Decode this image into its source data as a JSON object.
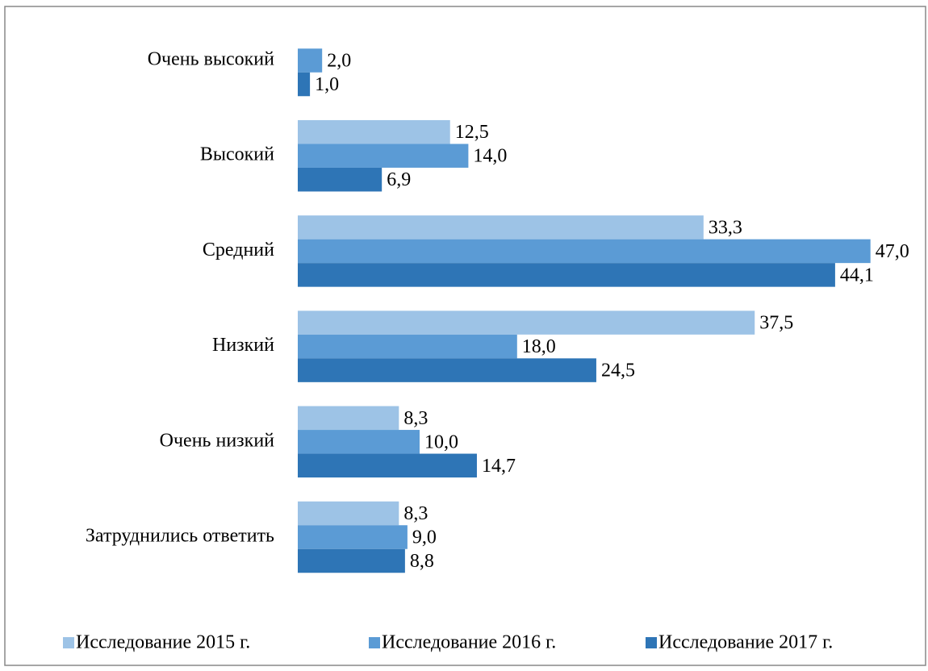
{
  "chart_data": {
    "type": "hbar",
    "categories": [
      "Очень высокий",
      "Высокий",
      "Средний",
      "Низкий",
      "Очень низкий",
      "Затруднились ответить"
    ],
    "series": [
      {
        "name": "Исследование 2015 г.",
        "color": "#9dc3e6",
        "values": [
          null,
          12.5,
          33.3,
          37.5,
          8.3,
          8.3
        ],
        "value_labels": [
          null,
          "12,5",
          "33,3",
          "37,5",
          "8,3",
          "8,3"
        ]
      },
      {
        "name": "Исследование 2016 г.",
        "color": "#5b9bd5",
        "values": [
          2.0,
          14.0,
          47.0,
          18.0,
          10.0,
          9.0
        ],
        "value_labels": [
          "2,0",
          "14,0",
          "47,0",
          "18,0",
          "10,0",
          "9,0"
        ]
      },
      {
        "name": "Исследование 2017 г.",
        "color": "#2e75b6",
        "values": [
          1.0,
          6.9,
          44.1,
          24.5,
          14.7,
          8.8
        ],
        "value_labels": [
          "1,0",
          "6,9",
          "44,1",
          "24,5",
          "14,7",
          "8,8"
        ]
      }
    ],
    "xlim": [
      0,
      50
    ],
    "legend": "bottom"
  }
}
